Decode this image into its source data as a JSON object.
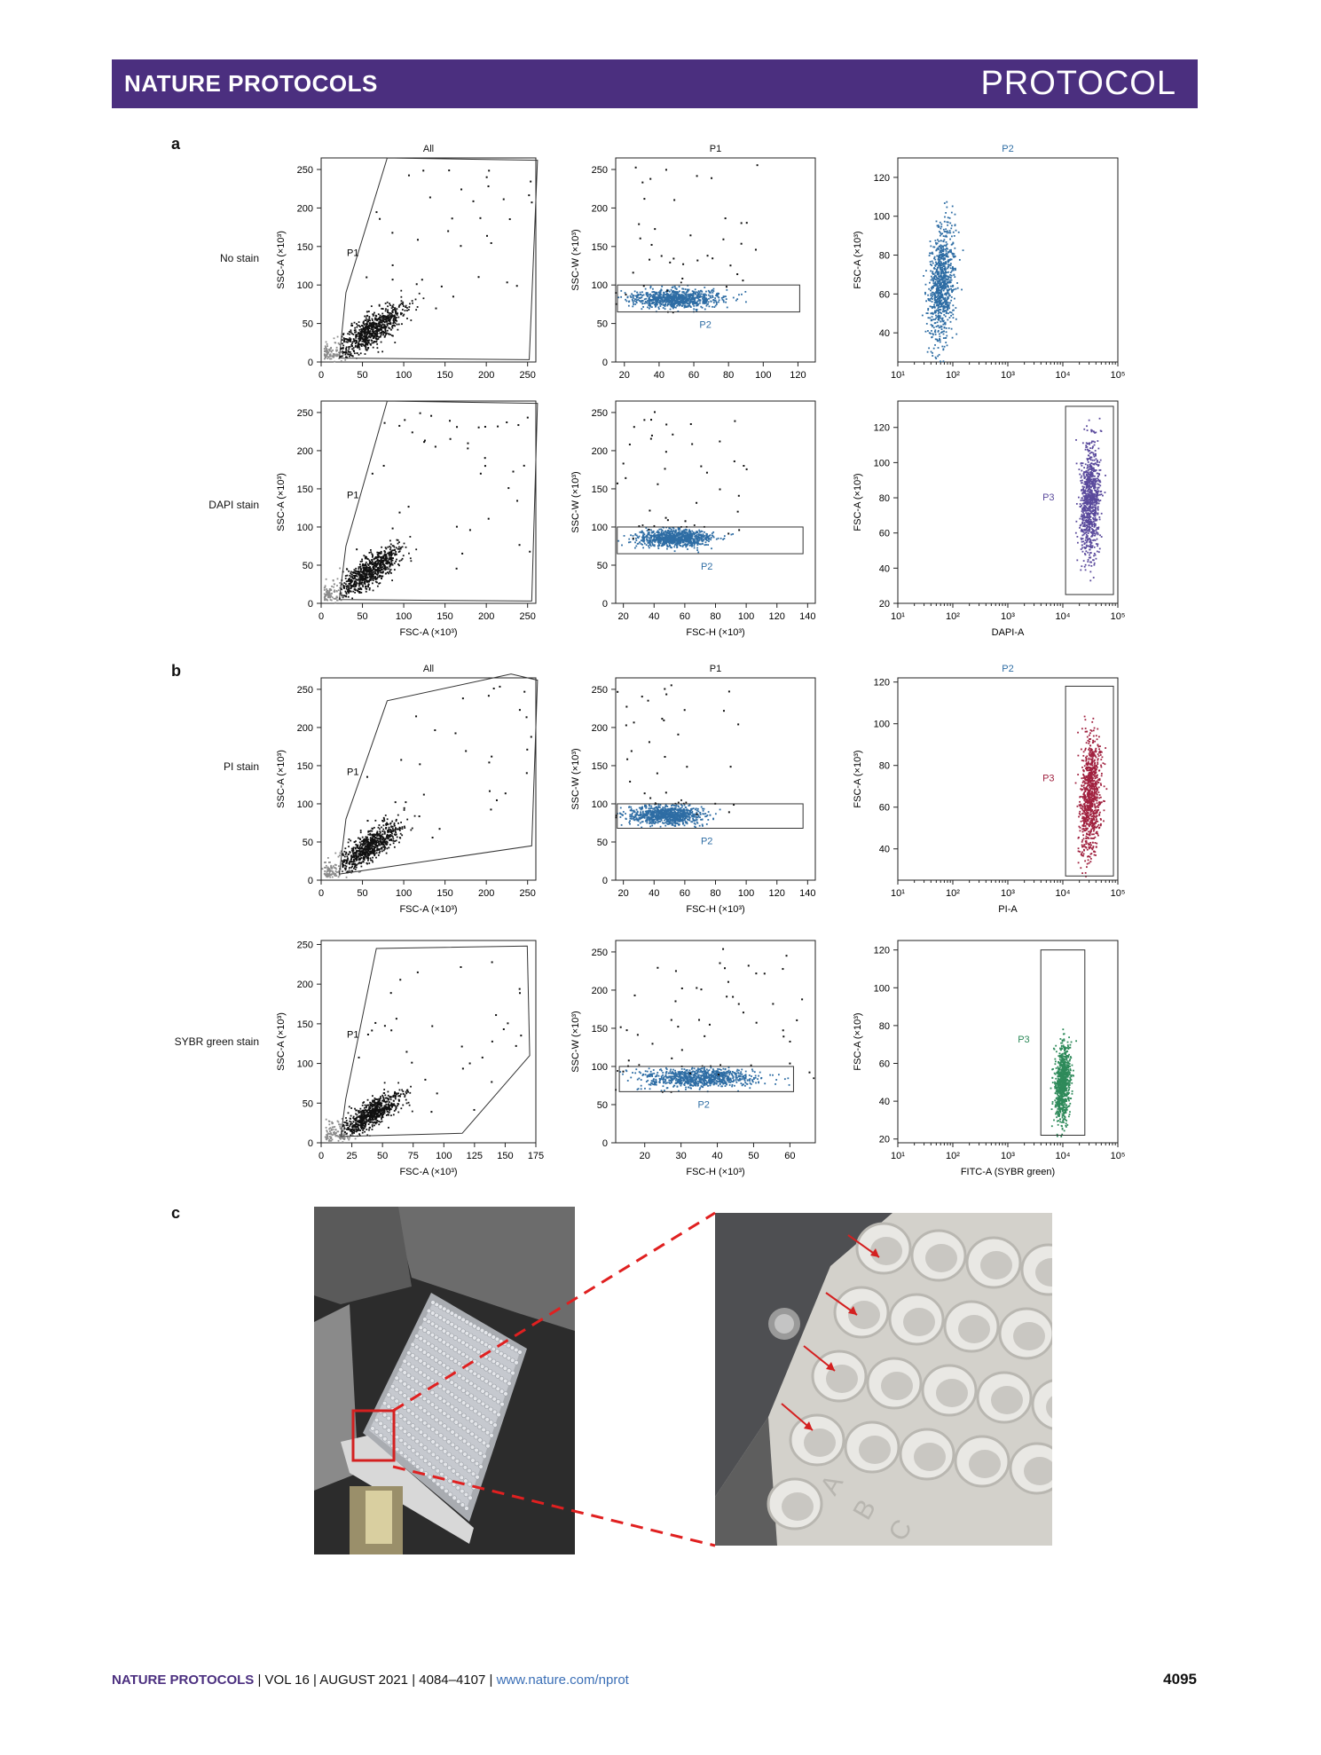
{
  "header": {
    "journal": "NATURE PROTOCOLS",
    "article_type": "PROTOCOL"
  },
  "panels": {
    "a": "a",
    "b": "b",
    "c": "c"
  },
  "row_labels": [
    "No stain",
    "DAPI stain",
    "PI stain",
    "SYBR green stain"
  ],
  "colors": {
    "ungated": "#8c8c8c",
    "gated": "#111111",
    "p2": "#2e6da4",
    "dapi": "#5a4a9c",
    "pi": "#a0213f",
    "sybr": "#2e8a5a",
    "gate": "#333333",
    "photo_annotation": "#d42020"
  },
  "chart_data": [
    {
      "type": "scatter",
      "row": 0,
      "col": 0,
      "title": "All",
      "xlabel": "",
      "ylabel": "SSC-A (×10³)",
      "xlim": [
        0,
        260
      ],
      "ylim": [
        0,
        265
      ],
      "xticks": [
        "0",
        "50",
        "100",
        "150",
        "200",
        "250"
      ],
      "yticks": [
        "0",
        "50",
        "100",
        "150",
        "200",
        "250"
      ],
      "gate": "P1",
      "gate_polygon": [
        [
          22,
          5
        ],
        [
          30,
          90
        ],
        [
          80,
          265
        ],
        [
          262,
          262
        ],
        [
          252,
          3
        ]
      ],
      "population": {
        "center": [
          60,
          40
        ],
        "spread": [
          20,
          18
        ],
        "count": 750
      }
    },
    {
      "type": "scatter",
      "row": 0,
      "col": 1,
      "title": "P1",
      "xlabel": "",
      "ylabel": "SSC-W (×10³)",
      "xlim": [
        15,
        130
      ],
      "ylim": [
        0,
        265
      ],
      "xticks": [
        "20",
        "40",
        "60",
        "80",
        "100",
        "120"
      ],
      "yticks": [
        "0",
        "50",
        "100",
        "150",
        "200",
        "250"
      ],
      "gate": "P2",
      "gate_rect": [
        [
          16,
          65
        ],
        [
          121,
          100
        ]
      ],
      "population": {
        "center": [
          50,
          82
        ],
        "spread": [
          12,
          6
        ],
        "count": 900
      }
    },
    {
      "type": "scatter",
      "row": 0,
      "col": 2,
      "title": "P2",
      "xlabel": "",
      "ylabel": "FSC-A (×10³)",
      "xscale": "log",
      "xlim": [
        1,
        5
      ],
      "ylim": [
        25,
        130
      ],
      "xticks": [
        "10¹",
        "10²",
        "10³",
        "10⁴",
        "10⁵"
      ],
      "yticks": [
        "40",
        "60",
        "80",
        "100",
        "120"
      ],
      "population": {
        "center": [
          1.8,
          65
        ],
        "spread": [
          0.12,
          14
        ],
        "count": 900
      }
    },
    {
      "type": "scatter",
      "row": 1,
      "col": 0,
      "title": "",
      "xlabel": "FSC-A (×10³)",
      "ylabel": "SSC-A (×10³)",
      "xlim": [
        0,
        260
      ],
      "ylim": [
        0,
        265
      ],
      "xticks": [
        "0",
        "50",
        "100",
        "150",
        "200",
        "250"
      ],
      "yticks": [
        "0",
        "50",
        "100",
        "150",
        "200",
        "250"
      ],
      "gate": "P1",
      "gate_polygon": [
        [
          22,
          5
        ],
        [
          30,
          75
        ],
        [
          80,
          265
        ],
        [
          262,
          262
        ],
        [
          255,
          3
        ]
      ],
      "population": {
        "center": [
          60,
          42
        ],
        "spread": [
          18,
          16
        ],
        "count": 750
      }
    },
    {
      "type": "scatter",
      "row": 1,
      "col": 1,
      "title": "",
      "xlabel": "FSC-H (×10³)",
      "ylabel": "SSC-W (×10³)",
      "xlim": [
        15,
        145
      ],
      "ylim": [
        0,
        265
      ],
      "xticks": [
        "20",
        "40",
        "60",
        "80",
        "100",
        "120",
        "140"
      ],
      "yticks": [
        "0",
        "50",
        "100",
        "150",
        "200",
        "250"
      ],
      "gate": "P2",
      "gate_rect": [
        [
          16,
          65
        ],
        [
          137,
          100
        ]
      ],
      "population": {
        "center": [
          53,
          85
        ],
        "spread": [
          12,
          6
        ],
        "count": 900
      }
    },
    {
      "type": "scatter",
      "row": 1,
      "col": 2,
      "title": "",
      "xlabel": "DAPI-A",
      "ylabel": "FSC-A (×10³)",
      "xscale": "log",
      "xlim": [
        1,
        5
      ],
      "ylim": [
        20,
        135
      ],
      "xticks": [
        "10¹",
        "10²",
        "10³",
        "10⁴",
        "10⁵"
      ],
      "yticks": [
        "20",
        "40",
        "60",
        "80",
        "100",
        "120"
      ],
      "gate": "P3",
      "gate_rect": [
        [
          4.05,
          25
        ],
        [
          4.92,
          132
        ]
      ],
      "population": {
        "center": [
          4.5,
          78
        ],
        "spread": [
          0.09,
          16
        ],
        "count": 900
      }
    },
    {
      "type": "scatter",
      "row": 2,
      "col": 0,
      "title": "All",
      "xlabel": "FSC-A (×10³)",
      "ylabel": "SSC-A (×10³)",
      "xlim": [
        0,
        260
      ],
      "ylim": [
        0,
        265
      ],
      "xticks": [
        "0",
        "50",
        "100",
        "150",
        "200",
        "250"
      ],
      "yticks": [
        "0",
        "50",
        "100",
        "150",
        "200",
        "250"
      ],
      "gate": "P1",
      "gate_polygon": [
        [
          22,
          8
        ],
        [
          30,
          80
        ],
        [
          80,
          235
        ],
        [
          230,
          270
        ],
        [
          262,
          262
        ],
        [
          255,
          45
        ]
      ],
      "population": {
        "center": [
          60,
          45
        ],
        "spread": [
          18,
          16
        ],
        "count": 750
      }
    },
    {
      "type": "scatter",
      "row": 2,
      "col": 1,
      "title": "P1",
      "xlabel": "FSC-H (×10³)",
      "ylabel": "SSC-W (×10³)",
      "xlim": [
        15,
        145
      ],
      "ylim": [
        0,
        265
      ],
      "xticks": [
        "20",
        "40",
        "60",
        "80",
        "100",
        "120",
        "140"
      ],
      "yticks": [
        "0",
        "50",
        "100",
        "150",
        "200",
        "250"
      ],
      "gate": "P2",
      "gate_rect": [
        [
          16,
          68
        ],
        [
          137,
          100
        ]
      ],
      "population": {
        "center": [
          48,
          85
        ],
        "spread": [
          12,
          6
        ],
        "count": 900
      }
    },
    {
      "type": "scatter",
      "row": 2,
      "col": 2,
      "title": "P2",
      "xlabel": "PI-A",
      "ylabel": "FSC-A (×10³)",
      "xscale": "log",
      "xlim": [
        1,
        5
      ],
      "ylim": [
        25,
        122
      ],
      "xticks": [
        "10¹",
        "10²",
        "10³",
        "10⁴",
        "10⁵"
      ],
      "yticks": [
        "40",
        "60",
        "80",
        "100",
        "120"
      ],
      "gate": "P3",
      "gate_rect": [
        [
          4.05,
          27
        ],
        [
          4.92,
          118
        ]
      ],
      "population": {
        "center": [
          4.5,
          65
        ],
        "spread": [
          0.09,
          14
        ],
        "count": 900
      }
    },
    {
      "type": "scatter",
      "row": 3,
      "col": 0,
      "title": "",
      "xlabel": "FSC-A (×10³)",
      "ylabel": "SSC-A (×10³)",
      "xlim": [
        0,
        175
      ],
      "ylim": [
        0,
        255
      ],
      "xticks": [
        "0",
        "25",
        "50",
        "75",
        "100",
        "125",
        "150",
        "175"
      ],
      "yticks": [
        "0",
        "50",
        "100",
        "150",
        "200",
        "250"
      ],
      "gate": "P1",
      "gate_polygon": [
        [
          16,
          8
        ],
        [
          20,
          55
        ],
        [
          45,
          245
        ],
        [
          168,
          248
        ],
        [
          170,
          110
        ],
        [
          115,
          12
        ]
      ],
      "population": {
        "center": [
          40,
          35
        ],
        "spread": [
          12,
          14
        ],
        "count": 750
      }
    },
    {
      "type": "scatter",
      "row": 3,
      "col": 1,
      "title": "",
      "xlabel": "FSC-H (×10³)",
      "ylabel": "SSC-W (×10³)",
      "xlim": [
        12,
        67
      ],
      "ylim": [
        0,
        265
      ],
      "xticks": [
        "20",
        "30",
        "40",
        "50",
        "60"
      ],
      "yticks": [
        "0",
        "50",
        "100",
        "150",
        "200",
        "250"
      ],
      "gate": "P2",
      "gate_rect": [
        [
          13,
          67
        ],
        [
          61,
          100
        ]
      ],
      "population": {
        "center": [
          35,
          85
        ],
        "spread": [
          8,
          6
        ],
        "count": 900
      }
    },
    {
      "type": "scatter",
      "row": 3,
      "col": 2,
      "title": "",
      "xlabel": "FITC-A (SYBR green)",
      "ylabel": "FSC-A (×10³)",
      "xscale": "log",
      "xlim": [
        1,
        5
      ],
      "ylim": [
        18,
        125
      ],
      "xticks": [
        "10¹",
        "10²",
        "10³",
        "10⁴",
        "10⁵"
      ],
      "yticks": [
        "20",
        "40",
        "60",
        "80",
        "100",
        "120"
      ],
      "gate": "P3",
      "gate_rect": [
        [
          3.6,
          22
        ],
        [
          4.4,
          120
        ]
      ],
      "population": {
        "center": [
          4.0,
          50
        ],
        "spread": [
          0.07,
          10
        ],
        "count": 900
      }
    }
  ],
  "footer": {
    "journal": "NATURE PROTOCOLS",
    "volume": "VOL 16",
    "date": "AUGUST 2021",
    "pages": "4084–4107",
    "url": "www.nature.com/nprot",
    "page_number": "4095"
  }
}
